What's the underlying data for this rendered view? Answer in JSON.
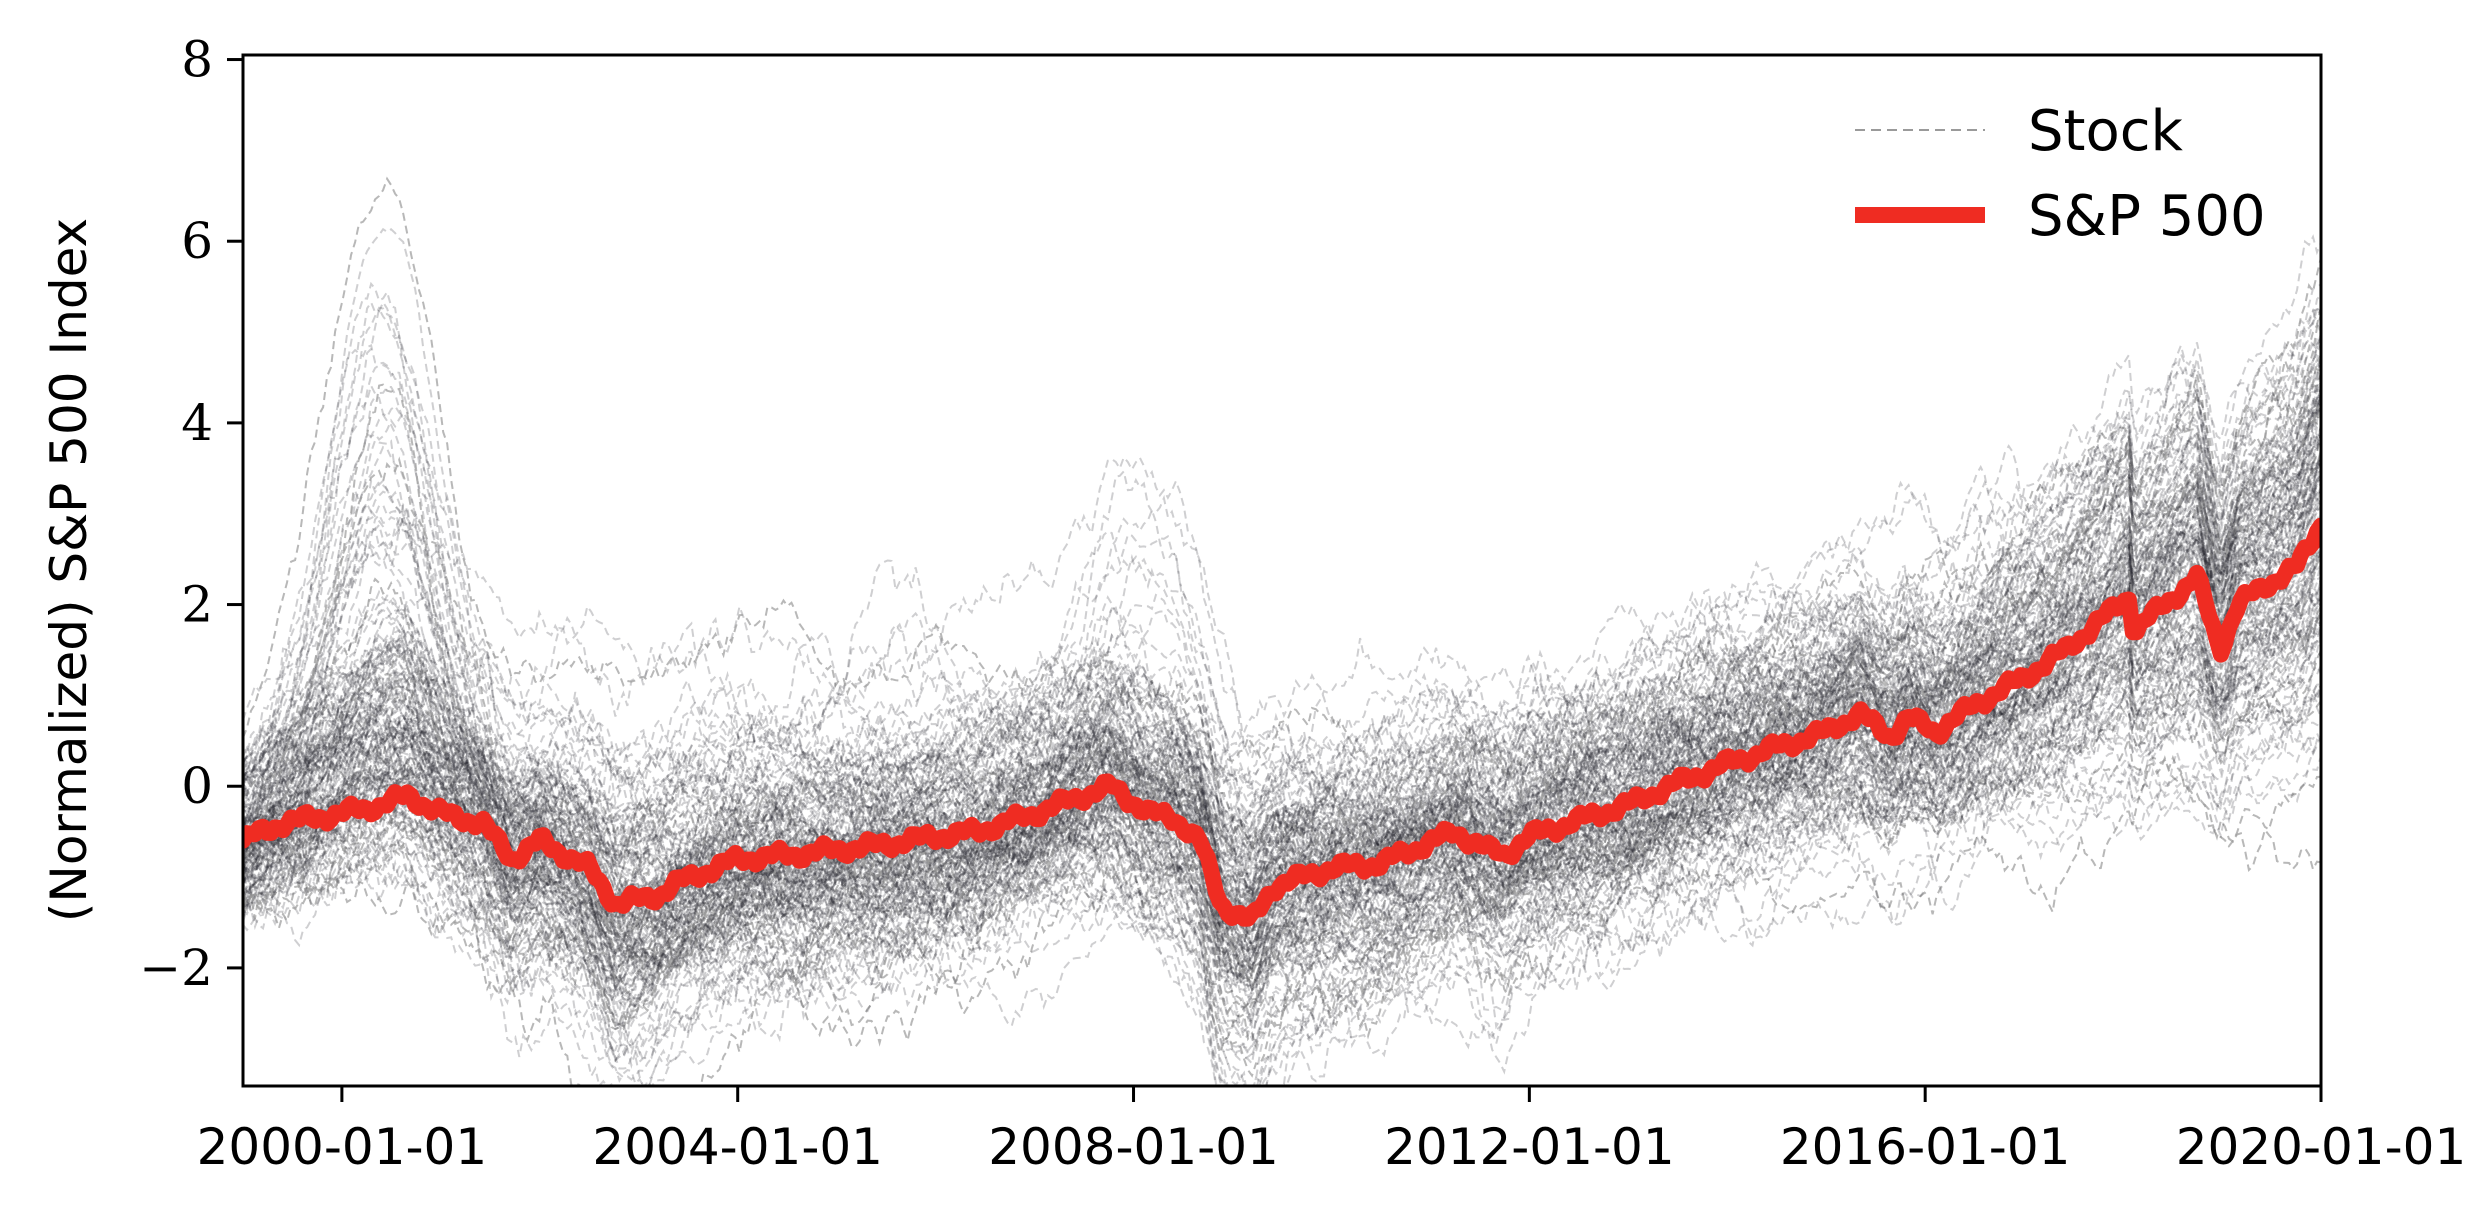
{
  "chart_data": {
    "type": "line",
    "title": "",
    "xlabel": "",
    "ylabel": "(Normalized) S&P 500 Index",
    "xlim": [
      "1999-01-01",
      "2020-01-01"
    ],
    "ylim": [
      -3.3,
      8.05
    ],
    "x_ticks": [
      "2000-01-01",
      "2004-01-01",
      "2008-01-01",
      "2012-01-01",
      "2016-01-01",
      "2020-01-01"
    ],
    "y_ticks": [
      -2,
      0,
      2,
      4,
      6,
      8
    ],
    "y_tick_labels": [
      "−2",
      "0",
      "2",
      "4",
      "6",
      "8"
    ],
    "grid": false,
    "legend_position": "top-right",
    "legend": [
      "Stock",
      "S&P 500"
    ],
    "colors": {
      "stock": "#24242e",
      "stock_sparse": "#9a9a9a",
      "sp500": "#ef2c22",
      "axis": "#000000"
    },
    "series": [
      {
        "name": "S&P 500",
        "x": [
          "1999-01-01",
          "1999-06-01",
          "2000-01-01",
          "2000-06-01",
          "2000-09-01",
          "2001-01-01",
          "2001-06-01",
          "2001-09-20",
          "2002-01-01",
          "2002-07-01",
          "2002-10-10",
          "2003-03-10",
          "2003-06-01",
          "2004-01-01",
          "2004-08-01",
          "2005-01-01",
          "2005-06-01",
          "2006-01-01",
          "2006-06-01",
          "2007-01-01",
          "2007-07-01",
          "2007-10-09",
          "2008-03-01",
          "2008-06-01",
          "2008-09-01",
          "2008-11-20",
          "2009-03-09",
          "2009-06-01",
          "2010-01-01",
          "2010-07-01",
          "2011-04-01",
          "2011-08-01",
          "2011-10-03",
          "2012-01-01",
          "2012-06-01",
          "2013-01-01",
          "2013-06-01",
          "2014-01-01",
          "2014-06-01",
          "2015-01-01",
          "2015-05-01",
          "2015-08-25",
          "2015-11-01",
          "2016-02-11",
          "2016-07-01",
          "2017-01-01",
          "2017-06-01",
          "2018-01-26",
          "2018-02-08",
          "2018-06-01",
          "2018-10-01",
          "2018-12-24",
          "2019-03-01",
          "2019-06-01",
          "2019-10-01",
          "2020-01-01"
        ],
        "y": [
          -0.6,
          -0.4,
          -0.3,
          -0.2,
          -0.1,
          -0.3,
          -0.4,
          -0.8,
          -0.6,
          -0.9,
          -1.3,
          -1.2,
          -1.05,
          -0.8,
          -0.75,
          -0.7,
          -0.65,
          -0.55,
          -0.5,
          -0.3,
          -0.1,
          0.0,
          -0.3,
          -0.35,
          -0.6,
          -1.3,
          -1.5,
          -1.1,
          -0.9,
          -0.85,
          -0.5,
          -0.7,
          -0.75,
          -0.55,
          -0.4,
          -0.2,
          0.0,
          0.25,
          0.4,
          0.6,
          0.8,
          0.55,
          0.75,
          0.6,
          0.9,
          1.2,
          1.5,
          2.1,
          1.7,
          2.0,
          2.3,
          1.5,
          2.0,
          2.2,
          2.4,
          2.9
        ]
      }
    ]
  }
}
